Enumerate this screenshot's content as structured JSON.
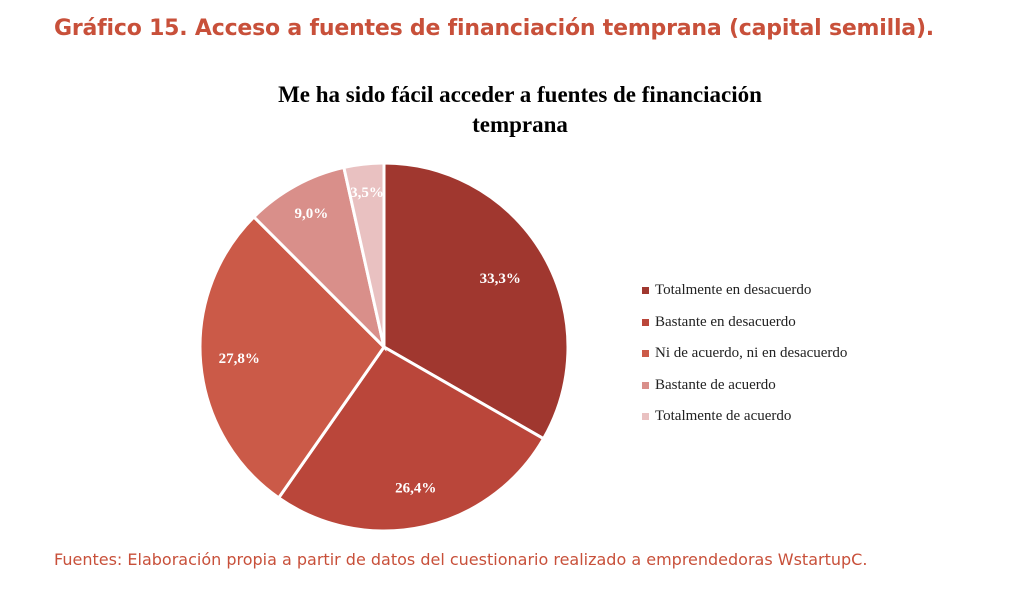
{
  "figure": {
    "caption": "Gráfico 15. Acceso a fuentes de financiación temprana (capital semilla).",
    "source": "Fuentes: Elaboración propia a partir de datos del cuestionario realizado a emprendedoras WstartupC."
  },
  "chart_data": {
    "type": "pie",
    "title_lines": [
      "Me ha sido fácil acceder a fuentes de financiación",
      "temprana"
    ],
    "legend_position": "right",
    "slices": [
      {
        "label": "Totalmente en desacuerdo",
        "value": 33.3,
        "display": "33,3%",
        "color": "#a0372f"
      },
      {
        "label": "Bastante en desacuerdo",
        "value": 26.4,
        "display": "26,4%",
        "color": "#ba463a"
      },
      {
        "label": "Ni de acuerdo, ni en desacuerdo",
        "value": 27.8,
        "display": "27,8%",
        "color": "#cb5a48"
      },
      {
        "label": "Bastante de acuerdo",
        "value": 9.0,
        "display": "9,0%",
        "color": "#d98f8a"
      },
      {
        "label": "Totalmente de acuerdo",
        "value": 3.5,
        "display": "3,5%",
        "color": "#e9c1c1"
      }
    ]
  }
}
